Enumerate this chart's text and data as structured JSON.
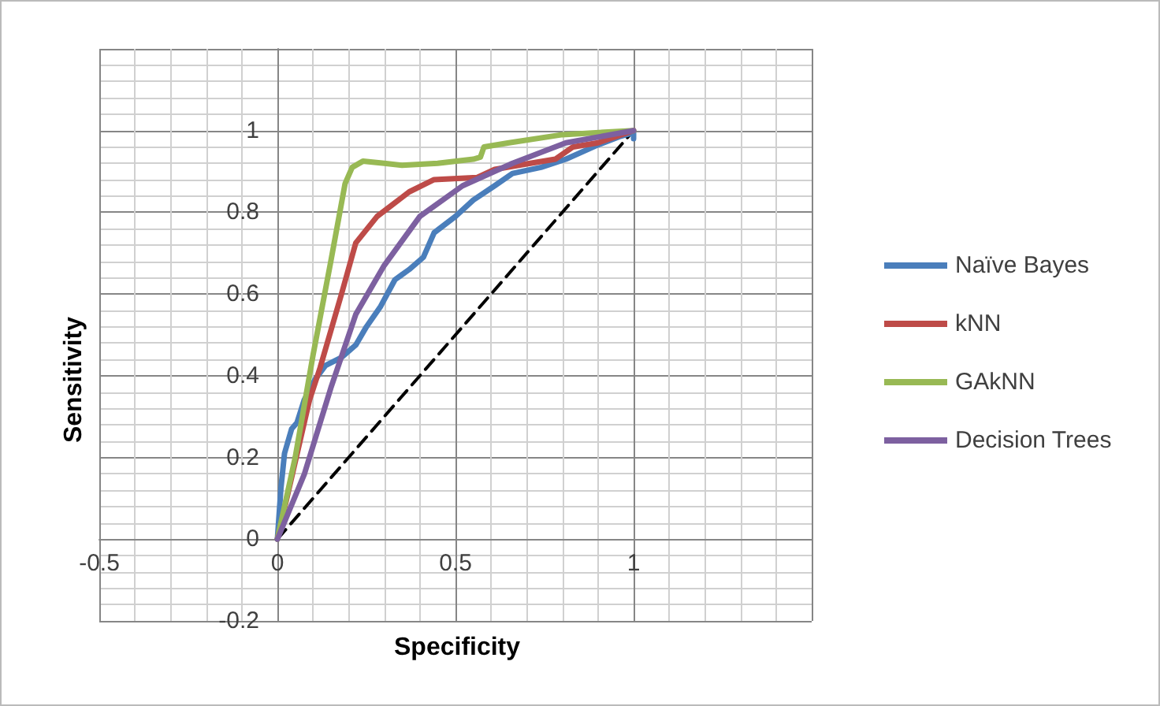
{
  "chart_data": {
    "type": "line",
    "xlabel": "Specificity",
    "ylabel": "Sensitivity",
    "xlim": [
      -0.5,
      1.5
    ],
    "ylim": [
      -0.2,
      1.2
    ],
    "xticks": [
      -0.5,
      0,
      0.5,
      1,
      {
        "value": 1.5,
        "label": null
      }
    ],
    "yticks": [
      -0.2,
      0,
      0.2,
      0.4,
      0.6,
      0.8,
      1,
      {
        "value": 1.2,
        "label": null
      }
    ],
    "grid": true,
    "legend": "right",
    "marker": "none",
    "series": [
      {
        "name": "Naïve Bayes",
        "color": "#4a7ebb",
        "x": [
          0,
          0.01,
          0.02,
          0.04,
          0.055,
          0.075,
          0.105,
          0.135,
          0.18,
          0.22,
          0.25,
          0.29,
          0.33,
          0.37,
          0.41,
          0.44,
          0.5,
          0.55,
          0.61,
          0.66,
          0.74,
          0.81,
          0.9,
          0.96,
          1,
          1
        ],
        "values": [
          0,
          0.125,
          0.21,
          0.27,
          0.285,
          0.34,
          0.39,
          0.425,
          0.445,
          0.475,
          0.52,
          0.57,
          0.635,
          0.66,
          0.69,
          0.75,
          0.79,
          0.83,
          0.865,
          0.895,
          0.91,
          0.93,
          0.965,
          0.985,
          0.995,
          0.98
        ]
      },
      {
        "name": "kNN",
        "color": "#be4b48",
        "x": [
          0,
          0.09,
          0.12,
          0.18,
          0.22,
          0.28,
          0.37,
          0.44,
          0.56,
          0.61,
          0.71,
          0.78,
          0.83,
          0.9,
          1
        ],
        "values": [
          0,
          0.34,
          0.42,
          0.6,
          0.725,
          0.79,
          0.85,
          0.88,
          0.885,
          0.905,
          0.92,
          0.93,
          0.96,
          0.97,
          1
        ]
      },
      {
        "name": "GAkNN",
        "color": "#98b954",
        "x": [
          0,
          0.05,
          0.1,
          0.15,
          0.19,
          0.21,
          0.24,
          0.3,
          0.35,
          0.45,
          0.55,
          0.57,
          0.58,
          0.65,
          0.8,
          1
        ],
        "values": [
          0,
          0.2,
          0.45,
          0.68,
          0.87,
          0.91,
          0.925,
          0.92,
          0.915,
          0.92,
          0.93,
          0.935,
          0.96,
          0.97,
          0.99,
          1
        ]
      },
      {
        "name": "Decision Trees",
        "color": "#7d60a0",
        "x": [
          0,
          0.076,
          0.15,
          0.22,
          0.3,
          0.4,
          0.52,
          0.66,
          0.81,
          1
        ],
        "values": [
          0,
          0.16,
          0.37,
          0.55,
          0.67,
          0.79,
          0.865,
          0.92,
          0.97,
          1
        ]
      },
      {
        "color": "#000000",
        "line_style": "dashed",
        "x": [
          0,
          1
        ],
        "values": [
          0,
          1
        ]
      }
    ]
  }
}
